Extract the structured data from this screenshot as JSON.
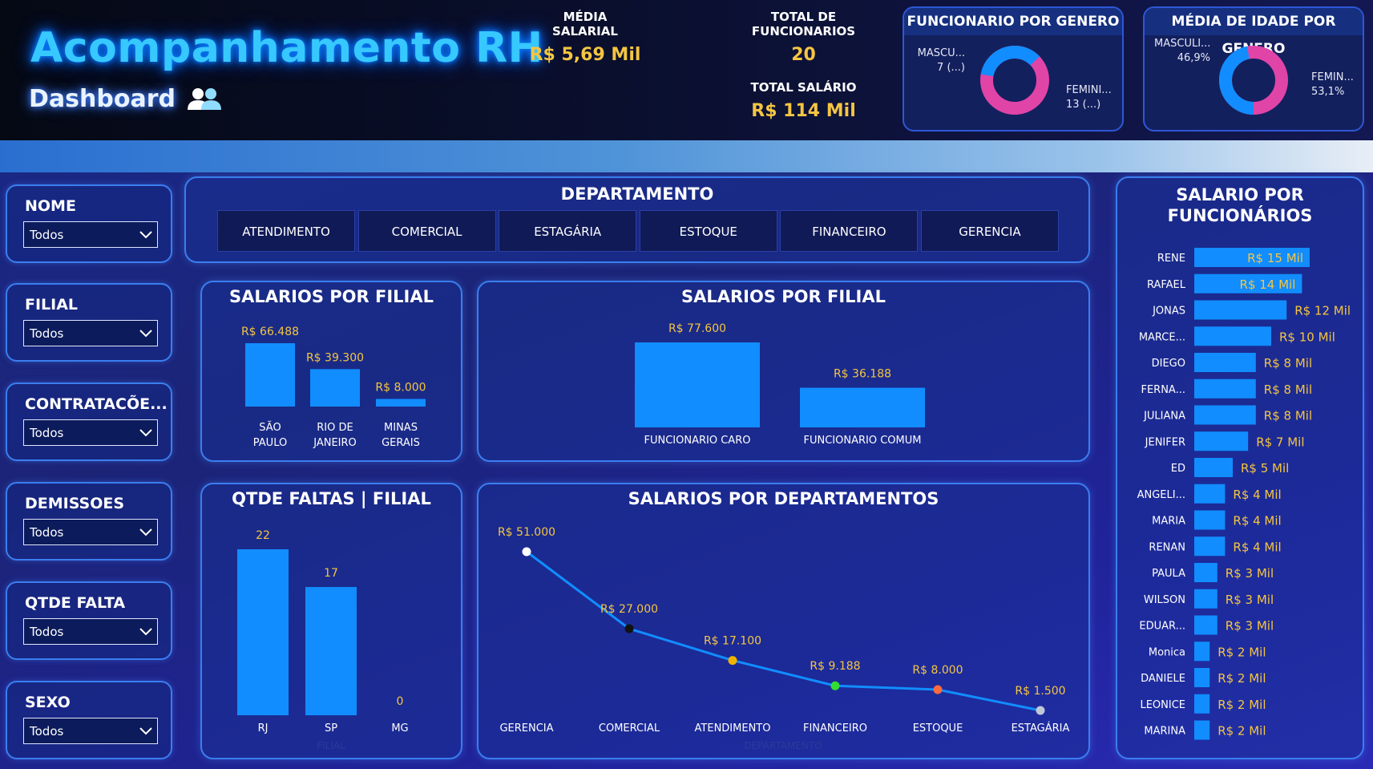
{
  "header": {
    "title": "Acompanhamento RH",
    "subtitle": "Dashboard",
    "kpis": {
      "media_salarial_label": "MÉDIA SALARIAL",
      "media_salarial_value": "R$ 5,69 Mil",
      "total_funcionarios_label": "TOTAL DE FUNCIONARIOS",
      "total_funcionarios_value": "20",
      "total_salario_label": "TOTAL SALÁRIO",
      "total_salario_value": "R$ 114 Mil"
    },
    "genero_card": {
      "title": "FUNCIONARIO POR GENERO",
      "masc_label": "MASCU...",
      "masc_value": "7 (...)",
      "fem_label": "FEMINI...",
      "fem_value": "13 (...)"
    },
    "idade_card": {
      "title": "MÉDIA DE IDADE POR GENERO",
      "masc_label": "MASCULI...",
      "masc_value": "46,9%",
      "fem_label": "FEMIN...",
      "fem_value": "53,1%"
    },
    "colors": {
      "masc": "#118dff",
      "fem": "#e044a7"
    }
  },
  "filters": [
    {
      "label": "NOME",
      "value": "Todos"
    },
    {
      "label": "FILIAL",
      "value": "Todos"
    },
    {
      "label": "CONTRATACÕE...",
      "value": "Todos"
    },
    {
      "label": "DEMISSOES",
      "value": "Todos"
    },
    {
      "label": "QTDE FALTA",
      "value": "Todos"
    },
    {
      "label": "SEXO",
      "value": "Todos"
    }
  ],
  "departamento": {
    "title": "DEPARTAMENTO",
    "buttons": [
      "ATENDIMENTO",
      "COMERCIAL",
      "ESTAGÁRIA",
      "ESTOQUE",
      "FINANCEIRO",
      "GERENCIA"
    ]
  },
  "chart_data": [
    {
      "id": "salarios_filial",
      "type": "bar",
      "title": "SALARIOS POR FILIAL",
      "categories": [
        "SÃO PAULO",
        "RIO DE JANEIRO",
        "MINAS GERAIS"
      ],
      "values": [
        66488,
        39300,
        8000
      ],
      "data_labels": [
        "R$ 66.488",
        "R$ 39.300",
        "R$ 8.000"
      ]
    },
    {
      "id": "salarios_tipo",
      "type": "bar",
      "title": "SALARIOS POR FILIAL",
      "categories": [
        "FUNCIONARIO CARO",
        "FUNCIONARIO COMUM"
      ],
      "values": [
        77600,
        36188
      ],
      "data_labels": [
        "R$ 77.600",
        "R$ 36.188"
      ]
    },
    {
      "id": "faltas_filial",
      "type": "bar",
      "title": "QTDE FALTAS | FILIAL",
      "xlabel": "FILIAL",
      "categories": [
        "RJ",
        "SP",
        "MG"
      ],
      "values": [
        22,
        17,
        0
      ],
      "data_labels": [
        "22",
        "17",
        "0"
      ]
    },
    {
      "id": "salarios_departamentos",
      "type": "line",
      "title": "SALARIOS POR DEPARTAMENTOS",
      "xlabel": "DEPARTAMENTO",
      "categories": [
        "GERENCIA",
        "COMERCIAL",
        "ATENDIMENTO",
        "FINANCEIRO",
        "ESTOQUE",
        "ESTAGÁRIA"
      ],
      "values": [
        51000,
        27000,
        17100,
        9188,
        8000,
        1500
      ],
      "data_labels": [
        "R$ 51.000",
        "R$ 27.000",
        "R$ 17.100",
        "R$ 9.188",
        "R$ 8.000",
        "R$ 1.500"
      ],
      "marker_colors": [
        "#ffffff",
        "#111111",
        "#f0b400",
        "#33dd33",
        "#ff6a3d",
        "#c0c8d8"
      ]
    },
    {
      "id": "salario_funcionarios",
      "type": "bar",
      "orientation": "horizontal",
      "title": "SALARIO POR FUNCIONÁRIOS",
      "categories": [
        "RENE",
        "RAFAEL",
        "JONAS",
        "MARCE...",
        "DIEGO",
        "FERNA...",
        "JULIANA",
        "JENIFER",
        "ED",
        "ANGELI...",
        "MARIA",
        "RENAN",
        "PAULA",
        "WILSON",
        "EDUAR...",
        "Monica",
        "DANIELE",
        "LEONICE",
        "MARINA"
      ],
      "values": [
        15,
        14,
        12,
        10,
        8,
        8,
        8,
        7,
        5,
        4,
        4,
        4,
        3,
        3,
        3,
        2,
        2,
        2,
        2
      ],
      "data_labels": [
        "R$ 15 Mil",
        "R$ 14 Mil",
        "R$ 12 Mil",
        "R$ 10 Mil",
        "R$ 8 Mil",
        "R$ 8 Mil",
        "R$ 8 Mil",
        "R$ 7 Mil",
        "R$ 5 Mil",
        "R$ 4 Mil",
        "R$ 4 Mil",
        "R$ 4 Mil",
        "R$ 3 Mil",
        "R$ 3 Mil",
        "R$ 3 Mil",
        "R$ 2 Mil",
        "R$ 2 Mil",
        "R$ 2 Mil",
        "R$ 2 Mil"
      ]
    }
  ]
}
